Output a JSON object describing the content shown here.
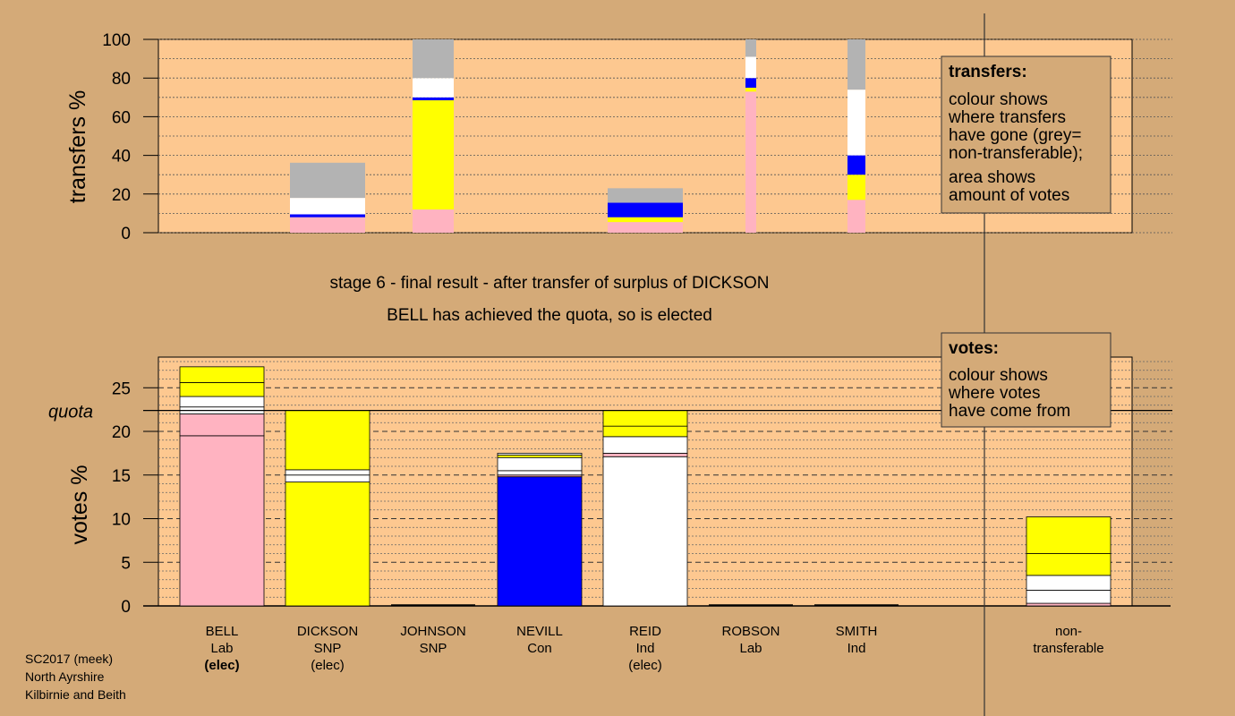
{
  "colors": {
    "background": "#d4aa78",
    "plot_fill": "#fdc890",
    "Lab": "#ffb3c1",
    "SNP": "#ffff00",
    "Con": "#0000ff",
    "Ind": "#ffffff",
    "non_transferable": "#b3b3b3"
  },
  "status": {
    "line1": "stage 6 - final result - after transfer of surplus of DICKSON",
    "line2": "BELL has achieved the quota, so is elected"
  },
  "transfers_box": {
    "title": "transfers:",
    "lines": [
      "colour shows",
      "where transfers",
      "have gone (grey=",
      "non-transferable);",
      "area shows",
      "amount of votes"
    ]
  },
  "votes_box": {
    "title": "votes:",
    "lines": [
      "colour shows",
      "where votes",
      "have come from"
    ]
  },
  "footer": [
    "SC2017 (meek)",
    "North Ayrshire",
    "Kilbirnie and Beith"
  ],
  "candidates": [
    {
      "name": "BELL",
      "party": "Lab",
      "status": "(elec)",
      "status_bold": true
    },
    {
      "name": "DICKSON",
      "party": "SNP",
      "status": "(elec)",
      "status_bold": false
    },
    {
      "name": "JOHNSON",
      "party": "SNP",
      "status": "",
      "status_bold": false
    },
    {
      "name": "NEVILL",
      "party": "Con",
      "status": "",
      "status_bold": false
    },
    {
      "name": "REID",
      "party": "Ind",
      "status": "(elec)",
      "status_bold": false
    },
    {
      "name": "ROBSON",
      "party": "Lab",
      "status": "",
      "status_bold": false
    },
    {
      "name": "SMITH",
      "party": "Ind",
      "status": "",
      "status_bold": false
    }
  ],
  "nontransferable_label": [
    "non-",
    "transferable"
  ],
  "chart_data": [
    {
      "type": "bar",
      "subtype": "stacked",
      "ylabel": "transfers %",
      "ylim": [
        0,
        100
      ],
      "yticks": [
        0,
        20,
        40,
        60,
        80,
        100
      ],
      "bars": [
        {
          "candidate": "DICKSON",
          "width": "wide",
          "segments": [
            {
              "party": "Lab",
              "value": 8
            },
            {
              "party": "Con",
              "value": 1.5
            },
            {
              "party": "Ind",
              "value": 8.5
            },
            {
              "party": "non_transferable",
              "value": 18.2
            }
          ]
        },
        {
          "candidate": "JOHNSON",
          "width": "medium",
          "segments": [
            {
              "party": "Lab",
              "value": 12
            },
            {
              "party": "SNP",
              "value": 56.5
            },
            {
              "party": "Con",
              "value": 1.5
            },
            {
              "party": "Ind",
              "value": 10
            },
            {
              "party": "non_transferable",
              "value": 20
            }
          ]
        },
        {
          "candidate": "REID",
          "width": "wide",
          "segments": [
            {
              "party": "Lab",
              "value": 5.5
            },
            {
              "party": "SNP",
              "value": 2.5
            },
            {
              "party": "Con",
              "value": 7.5
            },
            {
              "party": "non_transferable",
              "value": 7.5
            }
          ]
        },
        {
          "candidate": "ROBSON",
          "width": "narrow",
          "segments": [
            {
              "party": "Lab",
              "value": 73
            },
            {
              "party": "SNP",
              "value": 2
            },
            {
              "party": "Con",
              "value": 5
            },
            {
              "party": "Ind",
              "value": 11
            },
            {
              "party": "non_transferable",
              "value": 9
            }
          ]
        },
        {
          "candidate": "SMITH",
          "width": "slim",
          "segments": [
            {
              "party": "Lab",
              "value": 17
            },
            {
              "party": "SNP",
              "value": 13
            },
            {
              "party": "Con",
              "value": 10
            },
            {
              "party": "Ind",
              "value": 34
            },
            {
              "party": "non_transferable",
              "value": 26
            }
          ]
        }
      ]
    },
    {
      "type": "bar",
      "subtype": "stacked",
      "ylabel": "votes %",
      "ylim": [
        0,
        28.5
      ],
      "yticks": [
        0,
        5,
        10,
        15,
        20,
        25
      ],
      "quota": 22.4,
      "quota_label": "quota",
      "bars": [
        {
          "candidate": "BELL",
          "segments": [
            {
              "party": "Lab",
              "value": 19.5
            },
            {
              "party": "Lab",
              "value": 2.5
            },
            {
              "party": "Ind",
              "value": 0.8
            },
            {
              "party": "Ind",
              "value": 1.2
            },
            {
              "party": "SNP",
              "value": 1.6
            },
            {
              "party": "SNP",
              "value": 1.8
            }
          ]
        },
        {
          "candidate": "DICKSON",
          "segments": [
            {
              "party": "SNP",
              "value": 14.2
            },
            {
              "party": "Ind",
              "value": 0.8
            },
            {
              "party": "Ind",
              "value": 0.6
            },
            {
              "party": "SNP",
              "value": 6.8
            }
          ]
        },
        {
          "candidate": "JOHNSON",
          "segments": []
        },
        {
          "candidate": "NEVILL",
          "segments": [
            {
              "party": "Con",
              "value": 14.8
            },
            {
              "party": "Lab",
              "value": 0.2
            },
            {
              "party": "Ind",
              "value": 0.5
            },
            {
              "party": "Ind",
              "value": 1.5
            },
            {
              "party": "SNP",
              "value": 0.3
            },
            {
              "party": "Ind",
              "value": 0.2
            }
          ]
        },
        {
          "candidate": "REID",
          "segments": [
            {
              "party": "Ind",
              "value": 17.1
            },
            {
              "party": "Lab",
              "value": 0.4
            },
            {
              "party": "Ind",
              "value": 1.9
            },
            {
              "party": "SNP",
              "value": 1.2
            },
            {
              "party": "SNP",
              "value": 1.8
            }
          ]
        },
        {
          "candidate": "ROBSON",
          "segments": []
        },
        {
          "candidate": "SMITH",
          "segments": []
        },
        {
          "candidate": "non-transferable",
          "segments": [
            {
              "party": "Lab",
              "value": 0.3
            },
            {
              "party": "Ind",
              "value": 1.5
            },
            {
              "party": "Ind",
              "value": 1.7
            },
            {
              "party": "SNP",
              "value": 2.5
            },
            {
              "party": "SNP",
              "value": 4.2
            }
          ]
        }
      ]
    }
  ]
}
